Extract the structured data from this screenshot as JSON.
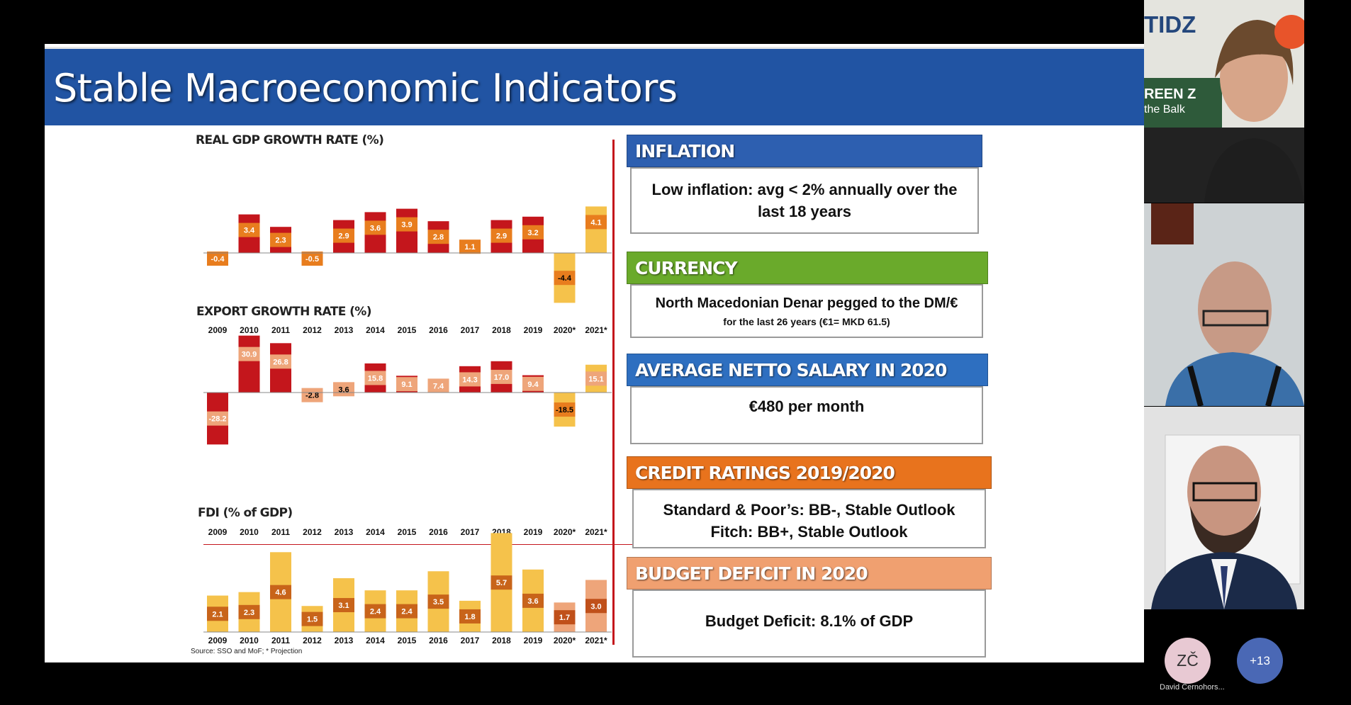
{
  "slide": {
    "title": "Stable Macroeconomic Indicators",
    "source": "Source: SSO and MoF;   * Projection"
  },
  "chart_data": [
    {
      "type": "bar",
      "title": "REAL GDP GROWTH RATE (%)",
      "categories": [
        "2009",
        "2010",
        "2011",
        "2012",
        "2013",
        "2014",
        "2015",
        "2016",
        "2017",
        "2018",
        "2019",
        "2020*",
        "2021*"
      ],
      "values": [
        -0.4,
        3.4,
        2.3,
        -0.5,
        2.9,
        3.6,
        3.9,
        2.8,
        1.1,
        2.9,
        3.2,
        -4.4,
        4.1
      ],
      "labels": [
        "-0.4",
        "3.4",
        "2.3",
        "-0.5",
        "2.9",
        "3.6",
        "3.9",
        "2.8",
        "1.1",
        "2.9",
        "3.2",
        "-4.4",
        "4.1"
      ]
    },
    {
      "type": "bar",
      "title": "EXPORT GROWTH RATE (%)",
      "categories": [
        "2009",
        "2010",
        "2011",
        "2012",
        "2013",
        "2014",
        "2015",
        "2016",
        "2017",
        "2018",
        "2019",
        "2020*",
        "2021*"
      ],
      "values": [
        -28.2,
        30.9,
        26.8,
        -2.8,
        3.6,
        15.8,
        9.1,
        7.4,
        14.3,
        17.0,
        9.4,
        -18.5,
        15.1
      ],
      "labels": [
        "-28.2",
        "30.9",
        "26.8",
        "-2.8",
        "3.6",
        "15.8",
        "9.1",
        "7.4",
        "14.3",
        "17.0",
        "9.4",
        "-18.5",
        "15.1"
      ]
    },
    {
      "type": "bar",
      "title": "FDI  (% of GDP)",
      "categories": [
        "2009",
        "2010",
        "2011",
        "2012",
        "2013",
        "2014",
        "2015",
        "2016",
        "2017",
        "2018",
        "2019",
        "2020*",
        "2021*"
      ],
      "values": [
        2.1,
        2.3,
        4.6,
        1.5,
        3.1,
        2.4,
        2.4,
        3.5,
        1.8,
        5.7,
        3.6,
        1.7,
        3.0
      ],
      "labels": [
        "2.1",
        "2.3",
        "4.6",
        "1.5",
        "3.1",
        "2.4",
        "2.4",
        "3.5",
        "1.8",
        "5.7",
        "3.6",
        "1.7",
        "3.0"
      ]
    }
  ],
  "boxes": {
    "inflation": {
      "title": "INFLATION",
      "line1": "Low inflation: avg < 2% annually over the",
      "line2": "last 18 years",
      "color": "#2d5fb0"
    },
    "currency": {
      "title": "CURRENCY",
      "line1": "North Macedonian Denar pegged to the DM/€",
      "line2": "for the last 26 years (€1= MKD 61.5)",
      "color": "#6aaa2b"
    },
    "salary": {
      "title": "AVERAGE NETTO SALARY IN 2020",
      "line1": "€480 per month",
      "color": "#2e6fc0"
    },
    "credit": {
      "title": "CREDIT RATINGS 2019/2020",
      "line1": "Standard & Poor’s: BB-, Stable Outlook",
      "line2": "Fitch: BB+, Stable Outlook",
      "color": "#e8731d"
    },
    "budget": {
      "title": "BUDGET DEFICIT IN 2020",
      "line1": "Budget Deficit: 8.1% of GDP",
      "color": "#f0a070"
    }
  },
  "participants": {
    "tile1_logo": "TIDZ",
    "tile1_text1": "REEN Z",
    "tile1_text2": "the Balk",
    "avatar_initials": "ZČ",
    "avatar_name": "David Černohors...",
    "more_count": "+13"
  },
  "colors": {
    "title_bar": "#2154a3",
    "bar_red": "#c4161c",
    "bar_orange": "#e87d1e",
    "bar_yellow": "#f5c24b",
    "bar_salmon": "#eea57a",
    "divider": "#c4161c",
    "avatar_bg": "#e8c9d3",
    "more_bg": "#4a68b5"
  }
}
